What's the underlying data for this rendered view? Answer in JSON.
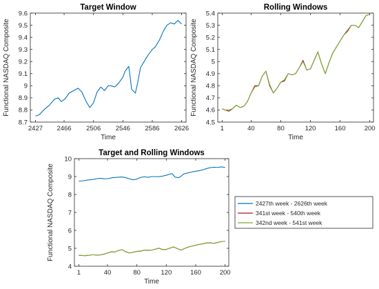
{
  "chart_data": [
    {
      "type": "line",
      "title": "Target Window",
      "xlabel": "Time",
      "ylabel": "Functional NASDAQ Composite",
      "xlim": [
        2420,
        2632
      ],
      "ylim": [
        8.7,
        9.6
      ],
      "xticks": [
        2427,
        2466,
        2506,
        2546,
        2586,
        2626
      ],
      "yticks": [
        8.7,
        8.8,
        8.9,
        9,
        9.1,
        9.2,
        9.3,
        9.4,
        9.5,
        9.6
      ],
      "grid": false,
      "series": [
        {
          "color": "#0072BD",
          "x": [
            2427,
            2432,
            2440,
            2446,
            2453,
            2458,
            2462,
            2467,
            2473,
            2479,
            2485,
            2490,
            2496,
            2501,
            2506,
            2511,
            2516,
            2521,
            2526,
            2530,
            2535,
            2540,
            2546,
            2549,
            2554,
            2558,
            2563,
            2566,
            2570,
            2575,
            2580,
            2586,
            2590,
            2596,
            2601,
            2606,
            2611,
            2616,
            2621,
            2626
          ],
          "values": [
            8.75,
            8.76,
            8.81,
            8.84,
            8.89,
            8.9,
            8.87,
            8.89,
            8.94,
            8.96,
            8.98,
            8.95,
            8.87,
            8.82,
            8.86,
            8.95,
            8.99,
            8.96,
            9.0,
            9.0,
            8.99,
            9.02,
            9.07,
            9.12,
            9.16,
            8.97,
            8.94,
            9.02,
            9.15,
            9.2,
            9.25,
            9.3,
            9.32,
            9.38,
            9.45,
            9.5,
            9.52,
            9.51,
            9.54,
            9.51
          ]
        }
      ]
    },
    {
      "type": "line",
      "title": "Rolling Windows",
      "xlabel": "Time",
      "ylabel": "Functional NASDAQ Composite",
      "xlim": [
        -5,
        205
      ],
      "ylim": [
        4.5,
        5.4
      ],
      "xticks": [
        1,
        40,
        80,
        120,
        160,
        200
      ],
      "yticks": [
        4.5,
        4.6,
        4.7,
        4.8,
        4.9,
        5,
        5.1,
        5.2,
        5.3,
        5.4
      ],
      "grid": false,
      "series": [
        {
          "color": "#A2142F",
          "x": [
            1,
            5,
            10,
            15,
            20,
            25,
            30,
            35,
            40,
            45,
            50,
            55,
            60,
            65,
            70,
            75,
            80,
            85,
            90,
            95,
            100,
            105,
            110,
            115,
            120,
            125,
            130,
            135,
            140,
            145,
            150,
            155,
            160,
            165,
            170,
            175,
            180,
            185,
            190,
            195,
            200
          ],
          "values": [
            4.61,
            4.6,
            4.59,
            4.61,
            4.64,
            4.62,
            4.63,
            4.67,
            4.74,
            4.8,
            4.8,
            4.88,
            4.92,
            4.8,
            4.74,
            4.78,
            4.83,
            4.84,
            4.9,
            4.89,
            4.9,
            4.95,
            5.01,
            4.93,
            4.94,
            5.01,
            5.08,
            4.98,
            4.9,
            4.99,
            5.07,
            5.12,
            5.17,
            5.22,
            5.25,
            5.3,
            5.3,
            5.28,
            5.33,
            5.38,
            5.39
          ]
        },
        {
          "color": "#77AC30",
          "x": [
            1,
            5,
            10,
            15,
            20,
            25,
            30,
            35,
            40,
            45,
            50,
            55,
            60,
            65,
            70,
            75,
            80,
            85,
            90,
            95,
            100,
            105,
            110,
            115,
            120,
            125,
            130,
            135,
            140,
            145,
            150,
            155,
            160,
            165,
            170,
            175,
            180,
            185,
            190,
            195,
            200
          ],
          "values": [
            4.61,
            4.6,
            4.6,
            4.61,
            4.64,
            4.62,
            4.63,
            4.67,
            4.74,
            4.79,
            4.8,
            4.88,
            4.92,
            4.81,
            4.74,
            4.78,
            4.83,
            4.85,
            4.9,
            4.89,
            4.9,
            4.95,
            5.0,
            4.93,
            4.94,
            5.01,
            5.08,
            4.98,
            4.9,
            4.99,
            5.07,
            5.12,
            5.17,
            5.22,
            5.26,
            5.3,
            5.3,
            5.28,
            5.33,
            5.38,
            5.39
          ]
        }
      ]
    },
    {
      "type": "line",
      "title": "Target and Rolling Windows",
      "xlabel": "Time",
      "ylabel": "Functional NASDAQ Composite",
      "xlim": [
        -5,
        205
      ],
      "ylim": [
        4,
        10
      ],
      "xticks": [
        1,
        40,
        80,
        120,
        160,
        200
      ],
      "yticks": [
        4,
        5,
        6,
        7,
        8,
        9,
        10
      ],
      "grid": false,
      "legend": "outside-right",
      "series": [
        {
          "name": "2427th week - 2626th week",
          "color": "#0072BD",
          "x": [
            1,
            6,
            14,
            20,
            27,
            32,
            36,
            41,
            47,
            53,
            59,
            64,
            70,
            75,
            80,
            85,
            90,
            95,
            100,
            104,
            109,
            114,
            120,
            123,
            128,
            132,
            137,
            140,
            144,
            149,
            154,
            160,
            164,
            170,
            175,
            180,
            185,
            190,
            195,
            200
          ],
          "values": [
            8.75,
            8.76,
            8.81,
            8.84,
            8.89,
            8.9,
            8.87,
            8.89,
            8.94,
            8.96,
            8.98,
            8.95,
            8.87,
            8.82,
            8.86,
            8.95,
            8.99,
            8.96,
            9.0,
            9.0,
            8.99,
            9.02,
            9.07,
            9.12,
            9.16,
            8.97,
            8.94,
            9.02,
            9.15,
            9.2,
            9.25,
            9.3,
            9.32,
            9.38,
            9.45,
            9.5,
            9.52,
            9.51,
            9.54,
            9.51
          ]
        },
        {
          "name": "341st week - 540th week",
          "color": "#A2142F",
          "x": [
            1,
            5,
            10,
            15,
            20,
            25,
            30,
            35,
            40,
            45,
            50,
            55,
            60,
            65,
            70,
            75,
            80,
            85,
            90,
            95,
            100,
            105,
            110,
            115,
            120,
            125,
            130,
            135,
            140,
            145,
            150,
            155,
            160,
            165,
            170,
            175,
            180,
            185,
            190,
            195,
            200
          ],
          "values": [
            4.61,
            4.6,
            4.59,
            4.61,
            4.64,
            4.62,
            4.63,
            4.67,
            4.74,
            4.8,
            4.8,
            4.88,
            4.92,
            4.8,
            4.74,
            4.78,
            4.83,
            4.84,
            4.9,
            4.89,
            4.9,
            4.95,
            5.01,
            4.93,
            4.94,
            5.01,
            5.08,
            4.98,
            4.9,
            4.99,
            5.07,
            5.12,
            5.17,
            5.22,
            5.25,
            5.3,
            5.3,
            5.28,
            5.33,
            5.38,
            5.39
          ]
        },
        {
          "name": "342nd week - 541st week",
          "color": "#77AC30",
          "x": [
            1,
            5,
            10,
            15,
            20,
            25,
            30,
            35,
            40,
            45,
            50,
            55,
            60,
            65,
            70,
            75,
            80,
            85,
            90,
            95,
            100,
            105,
            110,
            115,
            120,
            125,
            130,
            135,
            140,
            145,
            150,
            155,
            160,
            165,
            170,
            175,
            180,
            185,
            190,
            195,
            200
          ],
          "values": [
            4.61,
            4.6,
            4.6,
            4.61,
            4.64,
            4.62,
            4.63,
            4.67,
            4.74,
            4.79,
            4.8,
            4.88,
            4.92,
            4.81,
            4.74,
            4.78,
            4.83,
            4.85,
            4.9,
            4.89,
            4.9,
            4.95,
            5.0,
            4.93,
            4.94,
            5.01,
            5.08,
            4.98,
            4.9,
            4.99,
            5.07,
            5.12,
            5.17,
            5.22,
            5.26,
            5.3,
            5.3,
            5.28,
            5.33,
            5.38,
            5.39
          ]
        }
      ]
    }
  ]
}
